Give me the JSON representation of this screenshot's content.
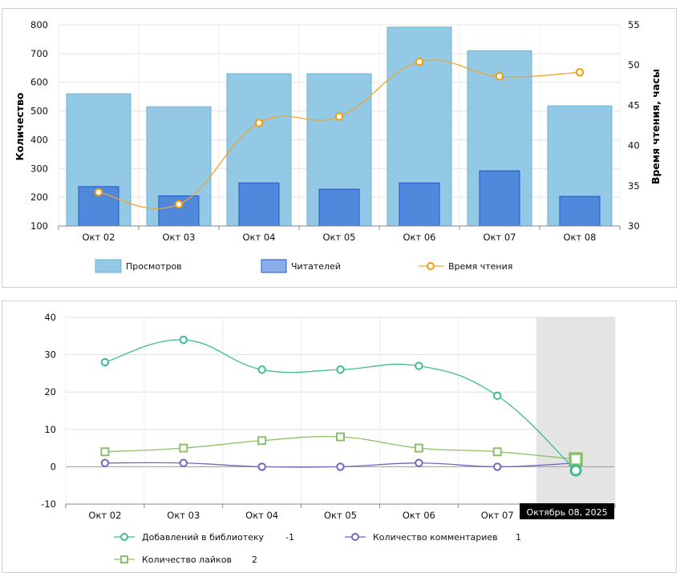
{
  "chart_data": [
    {
      "type": "bar",
      "categories": [
        "Окт 02",
        "Окт 03",
        "Окт 04",
        "Окт 05",
        "Окт 06",
        "Окт 07",
        "Окт 08"
      ],
      "series": [
        {
          "name": "Просмотров",
          "kind": "bar",
          "axis": "left",
          "color": "#93c9e5",
          "stroke": "#6bb3d6",
          "values": [
            560,
            515,
            630,
            630,
            792,
            710,
            518
          ]
        },
        {
          "name": "Читателей",
          "kind": "bar",
          "axis": "left",
          "color": "#5089dc",
          "stroke": "#1f55c3",
          "values": [
            237,
            205,
            250,
            228,
            250,
            292,
            203
          ]
        },
        {
          "name": "Время чтения",
          "kind": "line",
          "axis": "right",
          "color": "#f0a52a",
          "marker_color": "#f59b00",
          "values": [
            34.2,
            32.7,
            42.8,
            43.6,
            50.4,
            48.6,
            49.1
          ]
        }
      ],
      "ylabel": "Количество",
      "ylabel_right": "Время чтения, часы",
      "ylim": [
        100,
        800
      ],
      "yticks": [
        "100",
        "200",
        "300",
        "400",
        "500",
        "600",
        "700",
        "800"
      ],
      "ylim_right": [
        30,
        55
      ],
      "yticks_right": [
        "30",
        "35",
        "40",
        "45",
        "50",
        "55"
      ],
      "grid": true,
      "legend": "bottom"
    },
    {
      "type": "line",
      "categories": [
        "Окт 02",
        "Окт 03",
        "Окт 04",
        "Окт 05",
        "Окт 06",
        "Окт 07",
        "Окт 08"
      ],
      "series": [
        {
          "name": "Добавлений в библиотеку",
          "marker": "circle",
          "color": "#3dbb95",
          "values": [
            28,
            34,
            26,
            26,
            27,
            19,
            -1
          ],
          "current_value": "-1"
        },
        {
          "name": "Количество комментариев",
          "marker": "circle",
          "color": "#7465c0",
          "values": [
            1,
            1,
            0,
            0,
            1,
            0,
            1
          ],
          "current_value": "1"
        },
        {
          "name": "Количество лайков",
          "marker": "square",
          "color": "#8cc068",
          "values": [
            4,
            5,
            7,
            8,
            5,
            4,
            2
          ],
          "current_value": "2"
        }
      ],
      "ylim": [
        -10,
        40
      ],
      "yticks": [
        "-10",
        "0",
        "10",
        "20",
        "30",
        "40"
      ],
      "grid": true,
      "legend": "bottom",
      "highlighted_index": 6,
      "tooltip_label": "Октябрь 08, 2025"
    }
  ]
}
